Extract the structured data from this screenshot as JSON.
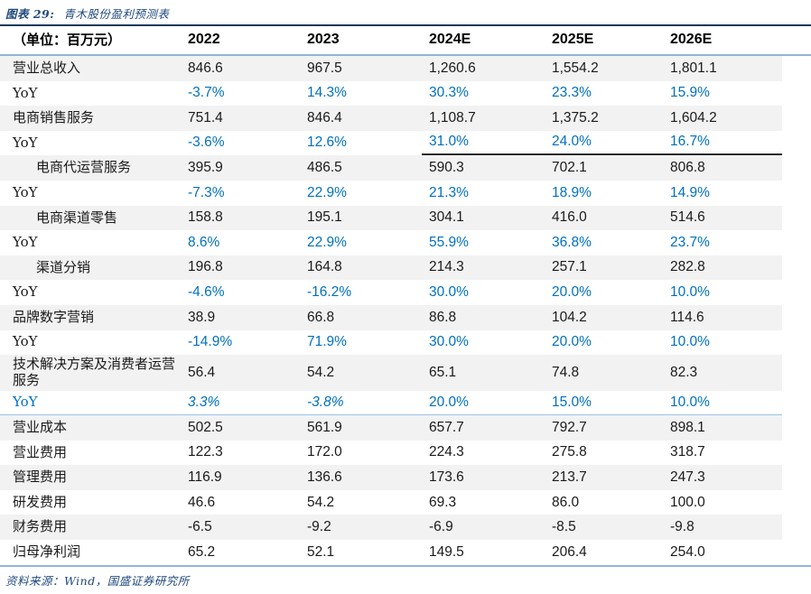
{
  "title": {
    "prefix": "图表 29:",
    "text": "青木股份盈利预测表"
  },
  "table": {
    "unit_label": "（单位：百万元）",
    "columns": [
      "2022",
      "2023",
      "2024E",
      "2025E",
      "2026E"
    ],
    "rows": [
      {
        "label": "营业总收入",
        "type": "value",
        "indent": 0,
        "values": [
          "846.6",
          "967.5",
          "1,260.6",
          "1,554.2",
          "1,801.1"
        ]
      },
      {
        "label": "YoY",
        "type": "yoy",
        "indent": 0,
        "values": [
          "-3.7%",
          "14.3%",
          "30.3%",
          "23.3%",
          "15.9%"
        ]
      },
      {
        "label": "电商销售服务",
        "type": "value",
        "indent": 0,
        "values": [
          "751.4",
          "846.4",
          "1,108.7",
          "1,375.2",
          "1,604.2"
        ]
      },
      {
        "label": "YoY",
        "type": "yoy",
        "indent": 0,
        "underline_forecast": true,
        "values": [
          "-3.6%",
          "12.6%",
          "31.0%",
          "24.0%",
          "16.7%"
        ]
      },
      {
        "label": "电商代运营服务",
        "type": "value",
        "indent": 1,
        "values": [
          "395.9",
          "486.5",
          "590.3",
          "702.1",
          "806.8"
        ]
      },
      {
        "label": "YoY",
        "type": "yoy",
        "indent": 0,
        "values": [
          "-7.3%",
          "22.9%",
          "21.3%",
          "18.9%",
          "14.9%"
        ]
      },
      {
        "label": "电商渠道零售",
        "type": "value",
        "indent": 1,
        "values": [
          "158.8",
          "195.1",
          "304.1",
          "416.0",
          "514.6"
        ]
      },
      {
        "label": "YoY",
        "type": "yoy",
        "indent": 0,
        "values": [
          "8.6%",
          "22.9%",
          "55.9%",
          "36.8%",
          "23.7%"
        ]
      },
      {
        "label": "渠道分销",
        "type": "value",
        "indent": 1,
        "values": [
          "196.8",
          "164.8",
          "214.3",
          "257.1",
          "282.8"
        ]
      },
      {
        "label": "YoY",
        "type": "yoy",
        "indent": 0,
        "values": [
          "-4.6%",
          "-16.2%",
          "30.0%",
          "20.0%",
          "10.0%"
        ]
      },
      {
        "label": "品牌数字营销",
        "type": "value",
        "indent": 0,
        "values": [
          "38.9",
          "66.8",
          "86.8",
          "104.2",
          "114.6"
        ]
      },
      {
        "label": "YoY",
        "type": "yoy",
        "indent": 0,
        "values": [
          "-14.9%",
          "71.9%",
          "30.0%",
          "20.0%",
          "10.0%"
        ]
      },
      {
        "label": "技术解决方案及消费者运营服务",
        "type": "value",
        "indent": 0,
        "values": [
          "56.4",
          "54.2",
          "65.1",
          "74.8",
          "82.3"
        ]
      },
      {
        "label": "YoY",
        "type": "yoy",
        "indent": 0,
        "blue_label": true,
        "italic_first_two": true,
        "separator_below": true,
        "values": [
          "3.3%",
          "-3.8%",
          "20.0%",
          "15.0%",
          "10.0%"
        ]
      },
      {
        "label": "营业成本",
        "type": "value",
        "indent": 0,
        "values": [
          "502.5",
          "561.9",
          "657.7",
          "792.7",
          "898.1"
        ]
      },
      {
        "label": "营业费用",
        "type": "value",
        "indent": 0,
        "values": [
          "122.3",
          "172.0",
          "224.3",
          "275.8",
          "318.7"
        ]
      },
      {
        "label": "管理费用",
        "type": "value",
        "indent": 0,
        "values": [
          "116.9",
          "136.6",
          "173.6",
          "213.7",
          "247.3"
        ]
      },
      {
        "label": "研发费用",
        "type": "value",
        "indent": 0,
        "values": [
          "46.6",
          "54.2",
          "69.3",
          "86.0",
          "100.0"
        ]
      },
      {
        "label": "财务费用",
        "type": "value",
        "indent": 0,
        "values": [
          "-6.5",
          "-9.2",
          "-6.9",
          "-8.5",
          "-9.8"
        ]
      },
      {
        "label": "归母净利润",
        "type": "value",
        "indent": 0,
        "values": [
          "65.2",
          "52.1",
          "149.5",
          "206.4",
          "254.0"
        ]
      }
    ]
  },
  "footer": {
    "source_label": "资料来源：",
    "source_text": "Wind，国盛证券研究所"
  },
  "colors": {
    "accent_blue": "#0070C0",
    "navy_text": "#1F497D",
    "rule_dark": "#17375E",
    "rule_light": "#95B3D7",
    "stripe_gray": "#F2F2F2"
  }
}
